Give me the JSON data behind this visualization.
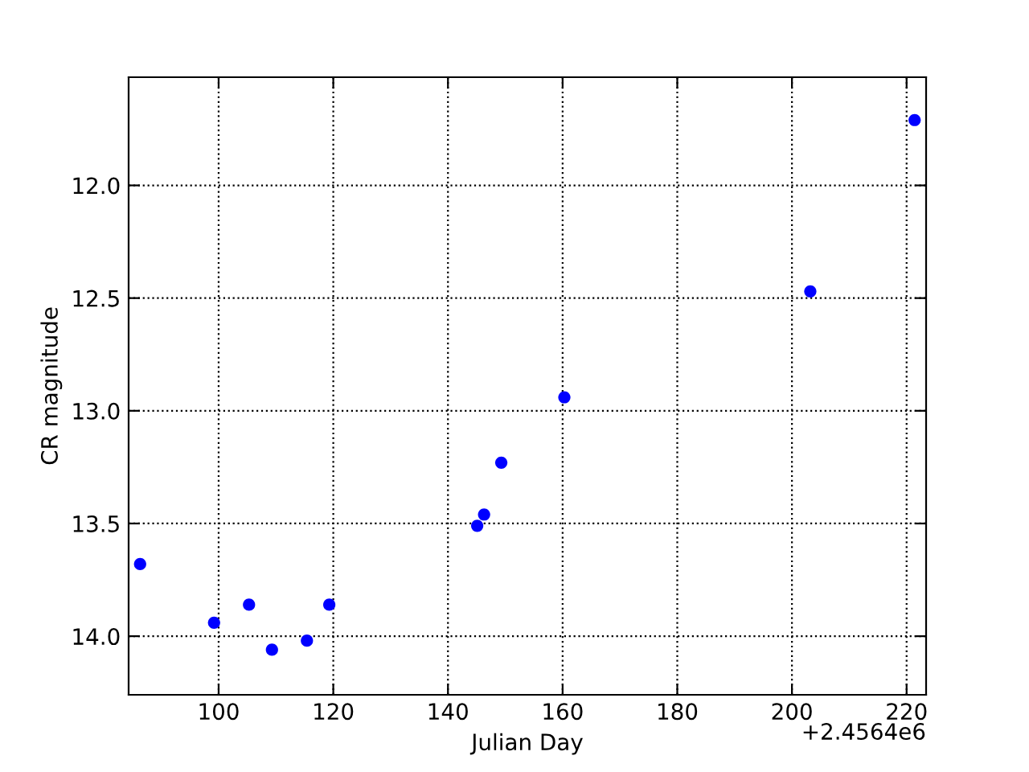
{
  "chart_data": {
    "type": "scatter",
    "xlabel": "Julian Day",
    "ylabel": "CR magnitude",
    "annotations": [
      "+2.4564e6"
    ],
    "series": [
      {
        "color": "#0000ff",
        "x": [
          86.3,
          99.2,
          105.3,
          109.3,
          115.4,
          119.3,
          145.1,
          146.3,
          149.3,
          160.3,
          203.2,
          221.4
        ],
        "values": [
          13.68,
          13.94,
          13.86,
          14.06,
          14.02,
          13.86,
          13.51,
          13.46,
          13.23,
          12.94,
          12.47,
          11.71
        ]
      }
    ],
    "xlim": [
      84.3,
      223.4
    ],
    "xticks": [
      100,
      120,
      140,
      160,
      180,
      200,
      220
    ],
    "ylim": [
      14.26,
      11.52
    ],
    "yticks": [
      {
        "value": 12.0,
        "label": "12.0"
      },
      {
        "value": 12.5,
        "label": "12.5"
      },
      {
        "value": 13.0,
        "label": "13.0"
      },
      {
        "value": 13.5,
        "label": "13.5"
      },
      {
        "value": 14.0,
        "label": "14.0"
      }
    ],
    "grid": true,
    "marker": "circle"
  }
}
